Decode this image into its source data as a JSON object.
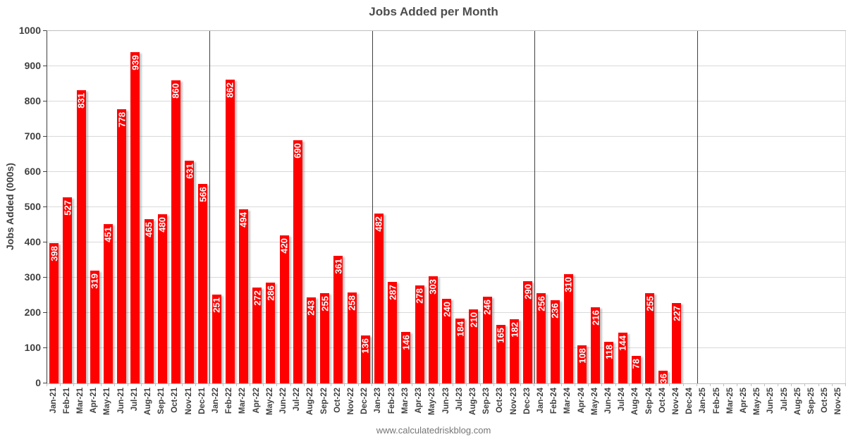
{
  "title": "Jobs Added per Month",
  "y_axis_title": "Jobs Added (000s)",
  "footer": "www.calculatedriskblog.com",
  "chart_data": {
    "type": "bar",
    "title": "Jobs Added per Month",
    "xlabel": "",
    "ylabel": "Jobs Added (000s)",
    "ylim": [
      0,
      1000
    ],
    "yticks": [
      0,
      100,
      200,
      300,
      400,
      500,
      600,
      700,
      800,
      900,
      1000
    ],
    "grid": "horizontal",
    "legend": "none",
    "bar_color": "#ff0000",
    "bar_label_color": "#ffffff",
    "axis_text_color": "#3f3f3f",
    "separator_line_color": "#404040",
    "categories": [
      "Jan-21",
      "Feb-21",
      "Mar-21",
      "Apr-21",
      "May-21",
      "Jun-21",
      "Jul-21",
      "Aug-21",
      "Sep-21",
      "Oct-21",
      "Nov-21",
      "Dec-21",
      "Jan-22",
      "Feb-22",
      "Mar-22",
      "Apr-22",
      "May-22",
      "Jun-22",
      "Jul-22",
      "Aug-22",
      "Sep-22",
      "Oct-22",
      "Nov-22",
      "Dec-22",
      "Jan-23",
      "Feb-23",
      "Mar-23",
      "Apr-23",
      "May-23",
      "Jun-23",
      "Jul-23",
      "Aug-23",
      "Sep-23",
      "Oct-23",
      "Nov-23",
      "Dec-23",
      "Jan-24",
      "Feb-24",
      "Mar-24",
      "Apr-24",
      "May-24",
      "Jun-24",
      "Jul-24",
      "Aug-24",
      "Sep-24",
      "Oct-24",
      "Nov-24",
      "Dec-24",
      "Jan-25",
      "Feb-25",
      "Mar-25",
      "Apr-25",
      "May-25",
      "Jun-25",
      "Jul-25",
      "Aug-25",
      "Sep-25",
      "Oct-25",
      "Nov-25"
    ],
    "values": [
      398,
      527,
      831,
      319,
      451,
      778,
      939,
      465,
      480,
      860,
      631,
      566,
      251,
      862,
      494,
      272,
      286,
      420,
      690,
      243,
      255,
      361,
      258,
      136,
      482,
      287,
      146,
      278,
      303,
      240,
      184,
      210,
      246,
      165,
      182,
      290,
      256,
      236,
      310,
      108,
      216,
      118,
      144,
      78,
      255,
      36,
      227,
      null,
      null,
      null,
      null,
      null,
      null,
      null,
      null,
      null,
      null,
      null,
      null
    ],
    "year_separators_after_index": [
      11,
      23,
      35,
      47
    ]
  }
}
